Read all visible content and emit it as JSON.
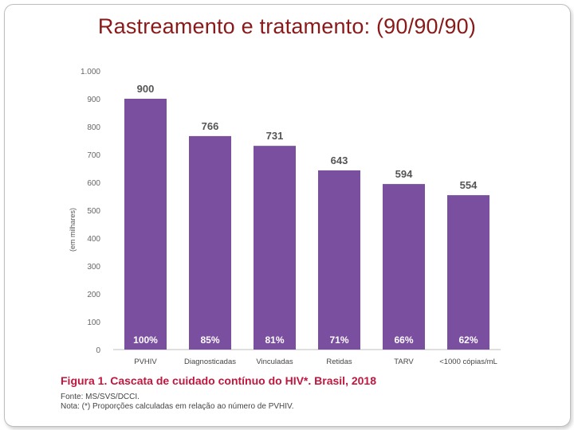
{
  "slide": {
    "title": "Rastreamento e tratamento: (90/90/90)"
  },
  "figure": {
    "caption_prefix": "Figura 1. ",
    "caption_text": "Cascata de cuidado contínuo do HIV*. Brasil, 2018",
    "source": "Fonte: MS/SVS/DCCI.",
    "note": "Nota: (*) Proporções calculadas em relação ao número de PVHIV."
  },
  "colors": {
    "bar": "#7b4fa0",
    "title": "#8a1a1a",
    "caption": "#c0173f",
    "value_label": "#555555",
    "percent_label": "#ffffff"
  },
  "chart_data": {
    "type": "bar",
    "title": "Cascata de cuidado contínuo do HIV*. Brasil, 2018",
    "xlabel": "",
    "ylabel": "(em milhares)",
    "ylim": [
      0,
      1000
    ],
    "yticks": [
      0,
      100,
      200,
      300,
      400,
      500,
      600,
      700,
      800,
      900,
      1000
    ],
    "ytick_labels": [
      "0",
      "100",
      "200",
      "300",
      "400",
      "500",
      "600",
      "700",
      "800",
      "900",
      "1.000"
    ],
    "categories": [
      "PVHIV",
      "Diagnosticadas",
      "Vinculadas",
      "Retidas",
      "TARV",
      "<1000 cópias/mL"
    ],
    "values": [
      900,
      766,
      731,
      643,
      594,
      554
    ],
    "percent_labels": [
      "100%",
      "85%",
      "81%",
      "71%",
      "66%",
      "62%"
    ],
    "grid": false
  }
}
